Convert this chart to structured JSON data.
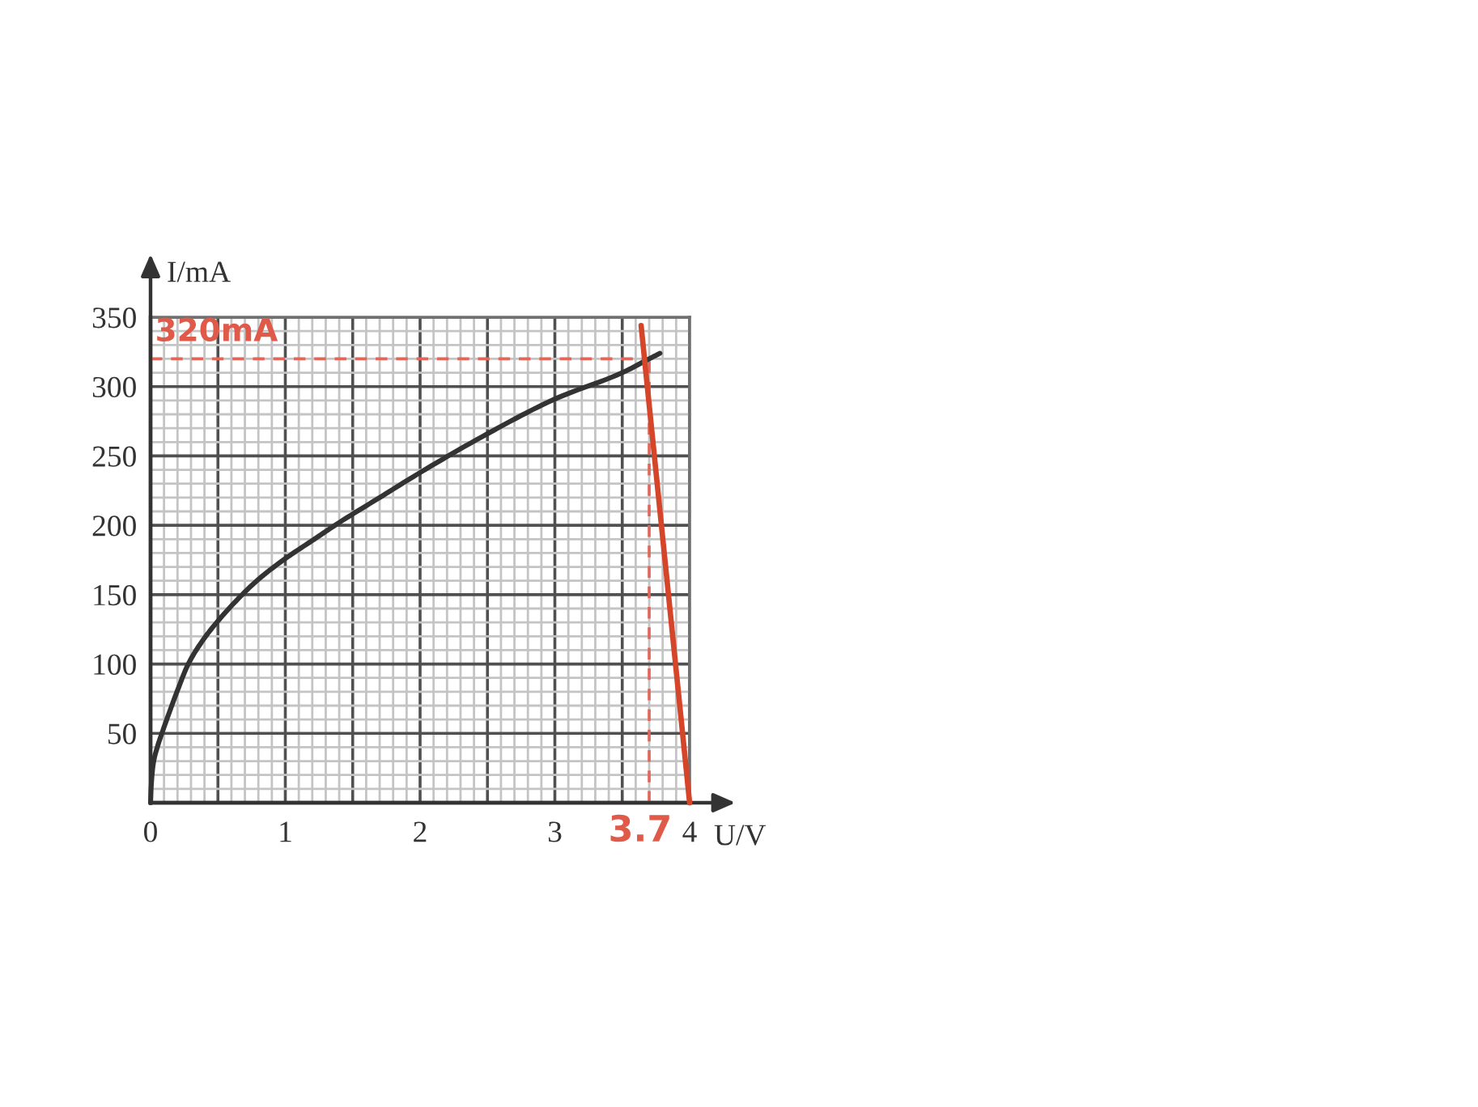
{
  "chart_data": {
    "type": "line",
    "xlabel": "U/V",
    "ylabel": "I/mA",
    "xlim": [
      0,
      4
    ],
    "ylim": [
      0,
      350
    ],
    "xticks": [
      0,
      {
        "value": 0.5,
        "label": null
      },
      1,
      {
        "value": 1.5,
        "label": null
      },
      2,
      {
        "value": 2.5,
        "label": null
      },
      3,
      {
        "value": 3.5,
        "label": null
      },
      4
    ],
    "yticks": [
      50,
      100,
      150,
      200,
      250,
      300,
      350
    ],
    "grid": true,
    "series": [
      {
        "color": "#333333",
        "x": [
          0,
          0.005,
          0.02,
          0.05,
          0.084,
          0.15,
          0.2,
          0.28,
          0.38,
          0.5,
          0.68,
          0.8,
          1,
          1.2,
          1.4,
          1.7,
          2,
          2.5,
          3,
          3.5,
          3.7,
          3.78
        ],
        "values": [
          0,
          12,
          28,
          40,
          50,
          68,
          81,
          100,
          116,
          131,
          150,
          161,
          176,
          189,
          202,
          220,
          238,
          266,
          291,
          310,
          320,
          324
        ]
      },
      {
        "color": "#d4452a",
        "x": [
          3.64,
          4
        ],
        "values": [
          344,
          0
        ]
      },
      {
        "color": "#e0675a",
        "x": [
          0,
          3.7
        ],
        "values": [
          320,
          320
        ],
        "line_style": "dashed"
      },
      {
        "color": "#e0675a",
        "x": [
          3.7,
          3.7
        ],
        "values": [
          0,
          320
        ],
        "line_style": "dashed"
      }
    ],
    "annotations": [
      {
        "text": "320mA",
        "x": 0,
        "y": 320
      },
      {
        "text": "3.7",
        "x": 3.7,
        "y": 0
      }
    ]
  }
}
